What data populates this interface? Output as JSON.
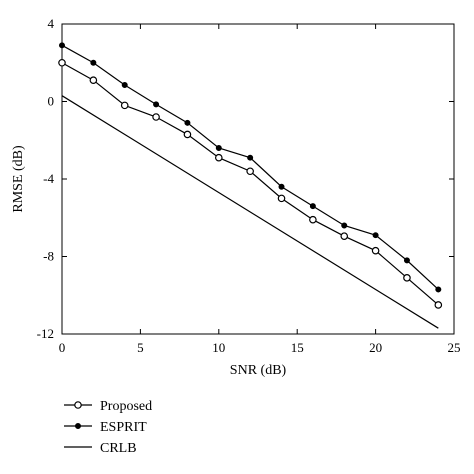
{
  "chart_data": {
    "type": "line",
    "title": "",
    "xlabel": "SNR (dB)",
    "ylabel": "RMSE (dB)",
    "xlim": [
      0,
      25
    ],
    "ylim": [
      -12,
      4
    ],
    "xticks": [
      0,
      5,
      10,
      15,
      20,
      25
    ],
    "yticks": [
      4,
      0,
      -4,
      -8,
      -12
    ],
    "grid": false,
    "legend_position": "below plot, left",
    "series": [
      {
        "name": "Proposed",
        "marker": "open-circle",
        "x": [
          0,
          2,
          4,
          6,
          8,
          10,
          12,
          14,
          16,
          18,
          20,
          22,
          24
        ],
        "y": [
          2.0,
          1.1,
          -0.2,
          -0.8,
          -1.7,
          -2.9,
          -3.6,
          -5.0,
          -6.1,
          -6.95,
          -7.7,
          -9.1,
          -10.5
        ]
      },
      {
        "name": "ESPRIT",
        "marker": "filled-dot",
        "x": [
          0,
          2,
          4,
          6,
          8,
          10,
          12,
          14,
          16,
          18,
          20,
          22,
          24
        ],
        "y": [
          2.9,
          2.0,
          0.85,
          -0.15,
          -1.1,
          -2.4,
          -2.9,
          -4.4,
          -5.4,
          -6.4,
          -6.9,
          -8.2,
          -9.7
        ]
      },
      {
        "name": "CRLB",
        "marker": "none",
        "x": [
          0,
          24
        ],
        "y": [
          0.3,
          -11.7
        ]
      }
    ]
  }
}
